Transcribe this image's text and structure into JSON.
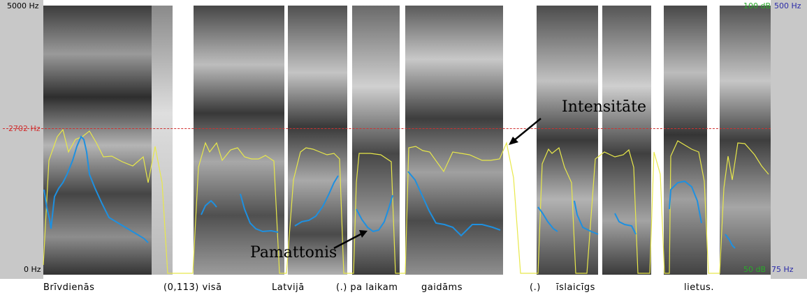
{
  "axis": {
    "freq_top": "5000 Hz",
    "freq_cursor": "2702 Hz",
    "freq_bottom": "0 Hz",
    "intensity_top": "100 dB",
    "pitch_top": "500 Hz",
    "intensity_bottom": "50 dB",
    "pitch_bottom": "75 Hz"
  },
  "annotations": {
    "intensity": "Intensitāte",
    "pitch": "Pamattonis"
  },
  "transcript": [
    "Brīvdienās",
    "(0,113) visā",
    "Latvijā",
    "(.) pa laikam",
    "gaidāms",
    "(.)",
    "īslaicīgs",
    "lietus."
  ],
  "colors": {
    "panel": "#c8c8c8",
    "intensity_curve": "#e8e84a",
    "pitch_curve": "#1e90e0",
    "cursor": "#d03030",
    "freq_label": "#d03030",
    "intensity_label": "#2aaa2a",
    "pitch_label": "#2a2aa8"
  }
}
